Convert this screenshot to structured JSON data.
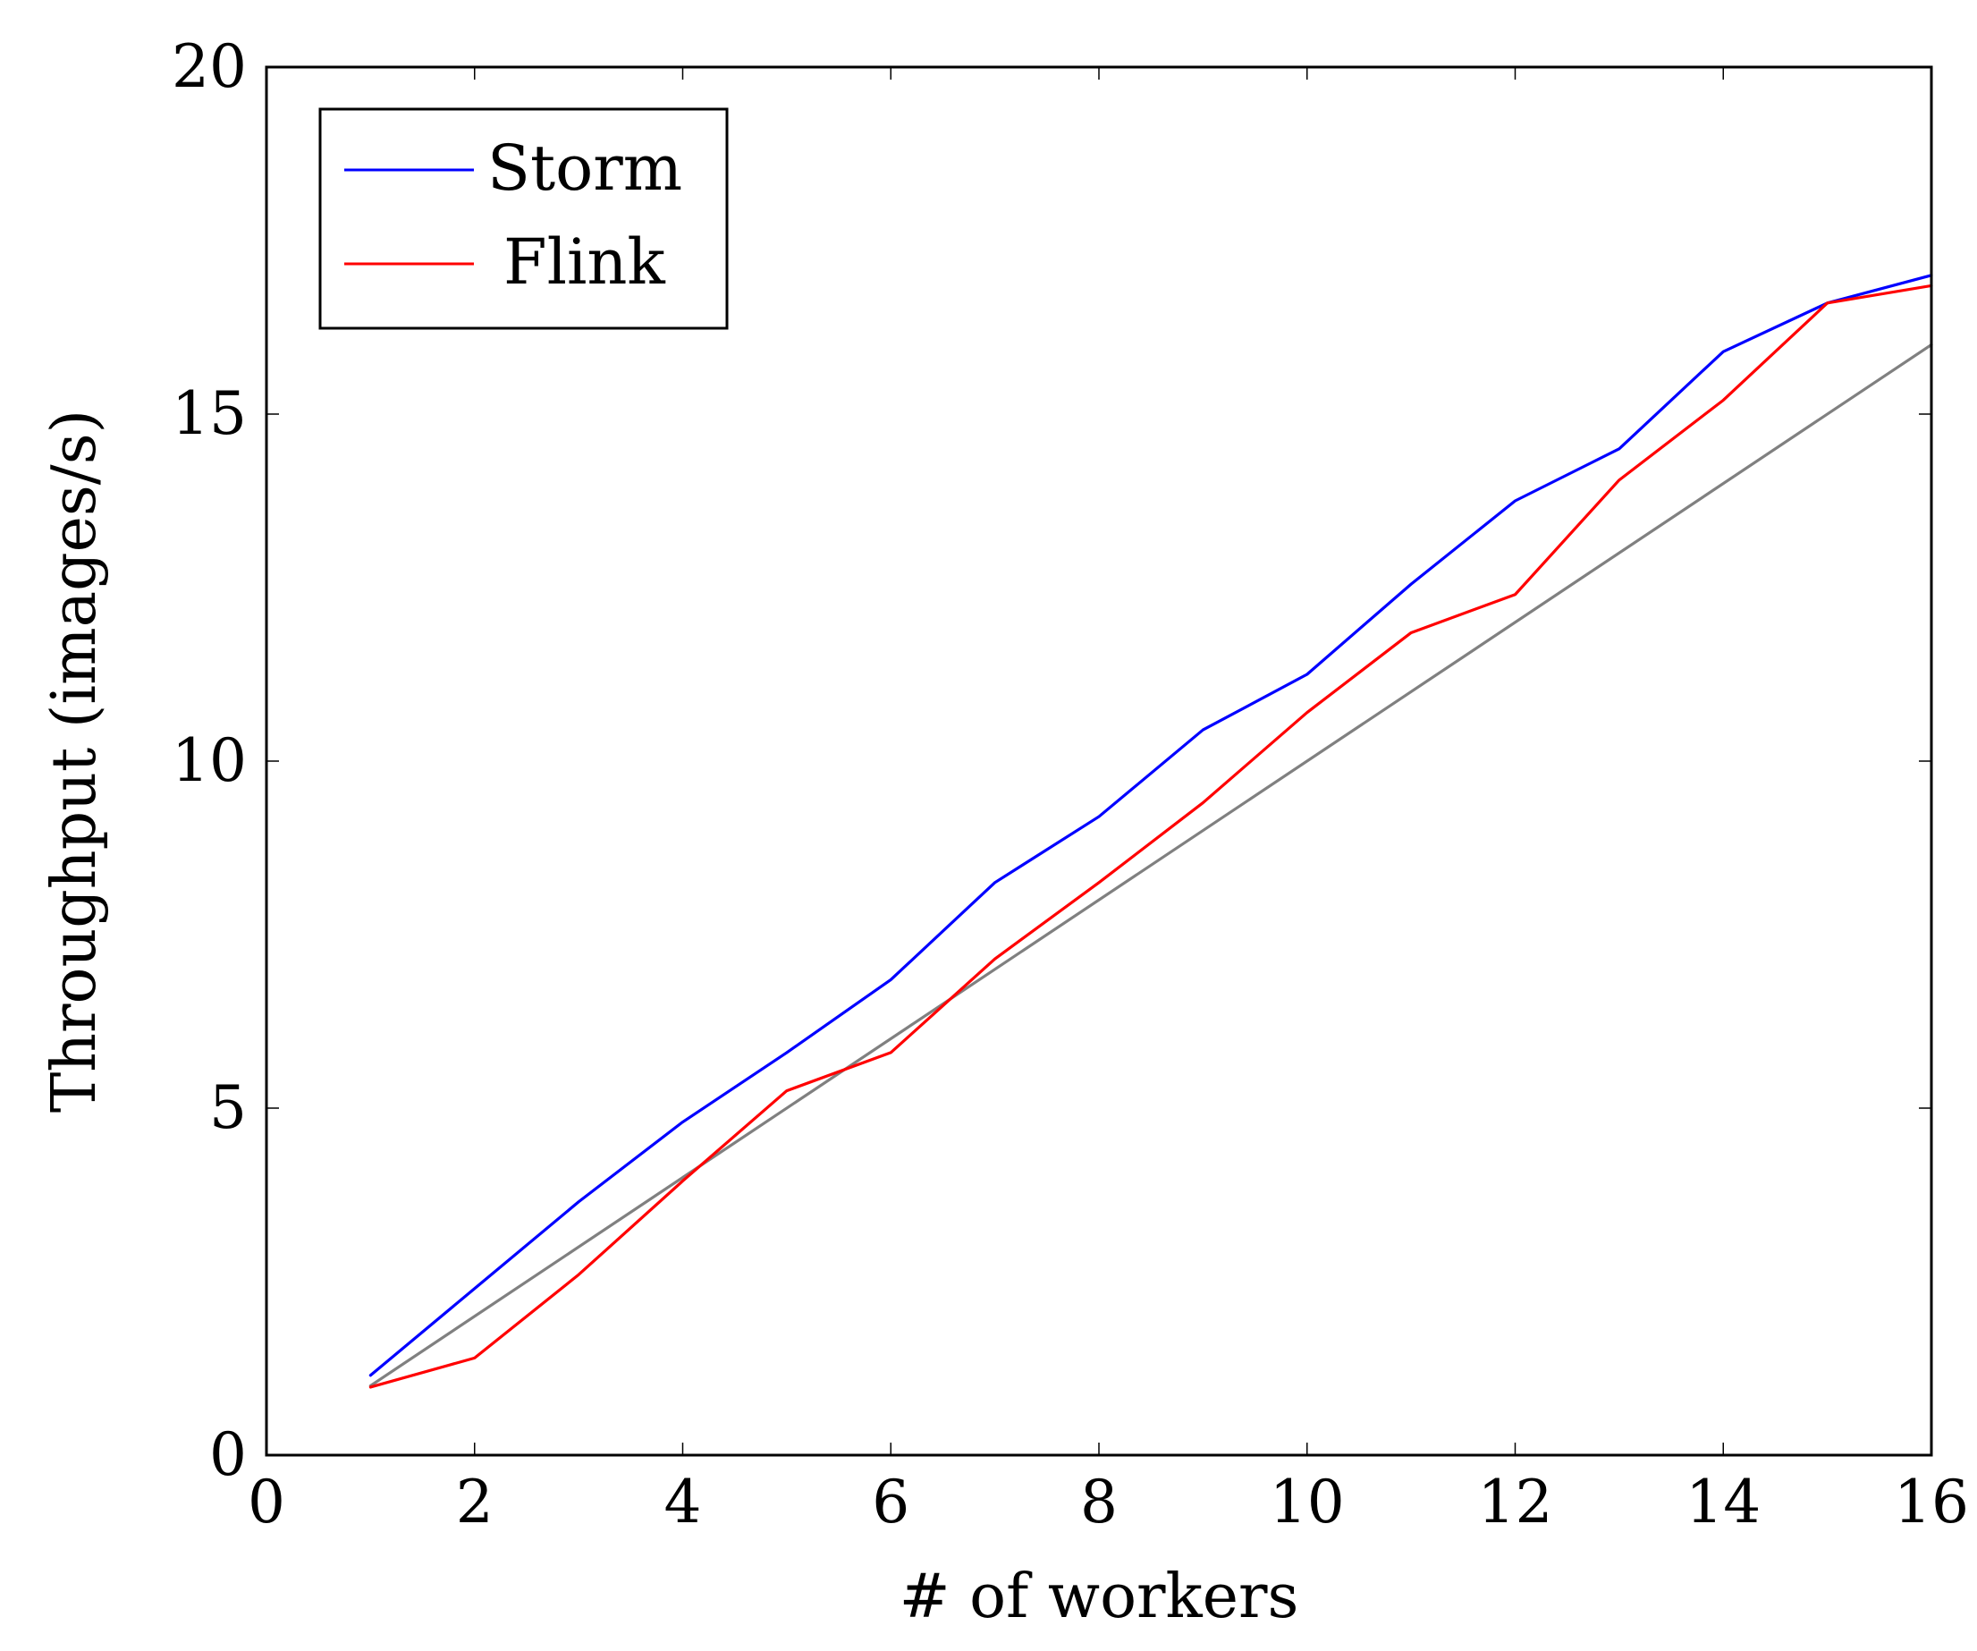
{
  "chart_data": {
    "type": "line",
    "xlabel": "# of workers",
    "ylabel": "Throughput (images/s)",
    "xlim": [
      0,
      16
    ],
    "ylim": [
      0,
      20
    ],
    "xticks": [
      "0",
      "2",
      "4",
      "6",
      "8",
      "10",
      "12",
      "14",
      "16"
    ],
    "yticks": [
      "0",
      "5",
      "10",
      "15",
      "20"
    ],
    "grid": false,
    "legend_position": "top-left",
    "series": [
      {
        "name": "Storm",
        "color": "#0000ff",
        "x": [
          1,
          2,
          3,
          4,
          5,
          6,
          7,
          8,
          9,
          10,
          11,
          12,
          13,
          14,
          15,
          16
        ],
        "y": [
          1.15,
          2.4,
          3.65,
          4.8,
          5.8,
          6.85,
          8.25,
          9.2,
          10.45,
          11.25,
          12.55,
          13.75,
          14.5,
          15.9,
          16.6,
          17.0
        ]
      },
      {
        "name": "Flink",
        "color": "#ff0000",
        "x": [
          1,
          2,
          3,
          4,
          5,
          6,
          7,
          8,
          9,
          10,
          11,
          12,
          13,
          14,
          15,
          16
        ],
        "y": [
          0.98,
          1.4,
          2.6,
          3.95,
          5.25,
          5.8,
          7.15,
          8.25,
          9.4,
          10.7,
          11.85,
          12.4,
          14.05,
          15.2,
          16.6,
          16.85
        ]
      },
      {
        "color": "#808080",
        "x": [
          1,
          16
        ],
        "y": [
          1,
          16
        ]
      }
    ]
  }
}
